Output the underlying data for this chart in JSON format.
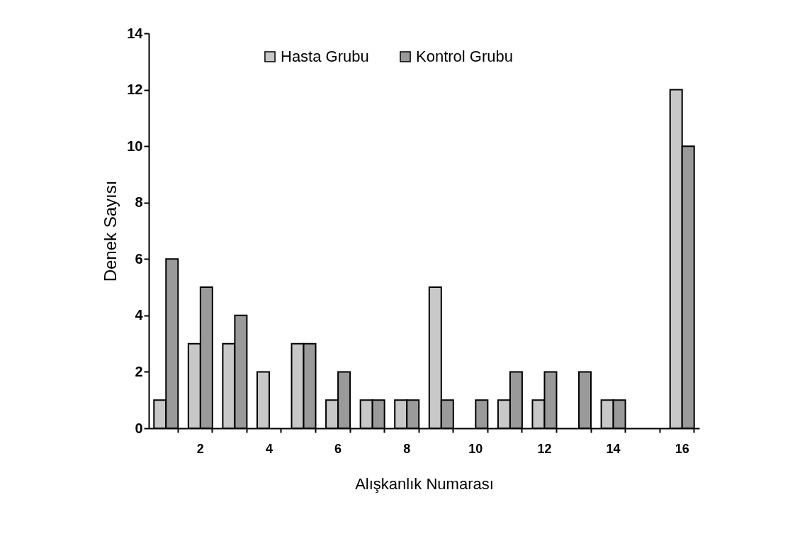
{
  "chart_data": {
    "type": "bar",
    "xlabel": "Alışkanlık Numarası",
    "ylabel": "Denek Sayısı",
    "categories": [
      null,
      "2",
      null,
      "4",
      null,
      "6",
      null,
      "8",
      null,
      "10",
      null,
      "12",
      null,
      "14",
      null,
      "16"
    ],
    "series": [
      {
        "name": "Hasta Grubu",
        "color": "#c8c8c8",
        "values": [
          1,
          3,
          3,
          2,
          3,
          1,
          1,
          1,
          5,
          0,
          1,
          1,
          0,
          1,
          0,
          12
        ]
      },
      {
        "name": "Kontrol Grubu",
        "color": "#9a9a9a",
        "values": [
          6,
          5,
          4,
          0,
          3,
          2,
          1,
          1,
          1,
          1,
          2,
          2,
          2,
          1,
          0,
          10
        ]
      }
    ],
    "ylim": [
      0,
      14
    ],
    "yticks": [
      0,
      2,
      4,
      6,
      8,
      10,
      12,
      14
    ],
    "grid": false,
    "legend": "top"
  }
}
